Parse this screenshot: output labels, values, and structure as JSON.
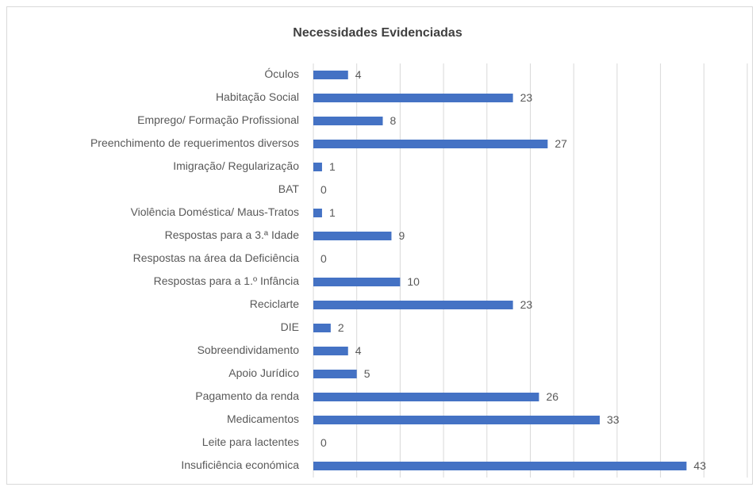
{
  "chart_data": {
    "type": "bar",
    "orientation": "horizontal",
    "title": "Necessidades Evidenciadas",
    "categories": [
      "Óculos",
      "Habitação Social",
      "Emprego/ Formação Profissional",
      "Preenchimento de requerimentos diversos",
      "Imigração/ Regularização",
      "BAT",
      "Violência Doméstica/ Maus-Tratos",
      "Respostas para a 3.ª Idade",
      "Respostas na área da Deficiência",
      "Respostas para a 1.º Infância",
      "Reciclarte",
      "DIE",
      "Sobreendividamento",
      "Apoio Jurídico",
      "Pagamento da renda",
      "Medicamentos",
      "Leite para lactentes",
      "Insuficiência económica"
    ],
    "values": [
      4,
      23,
      8,
      27,
      1,
      0,
      1,
      9,
      0,
      10,
      23,
      2,
      4,
      5,
      26,
      33,
      0,
      43
    ],
    "color": "#4472c4",
    "xlim": [
      0,
      50
    ],
    "xticks": [
      0,
      5,
      10,
      15,
      20,
      25,
      30,
      35,
      40,
      45,
      50
    ],
    "grid": true
  }
}
